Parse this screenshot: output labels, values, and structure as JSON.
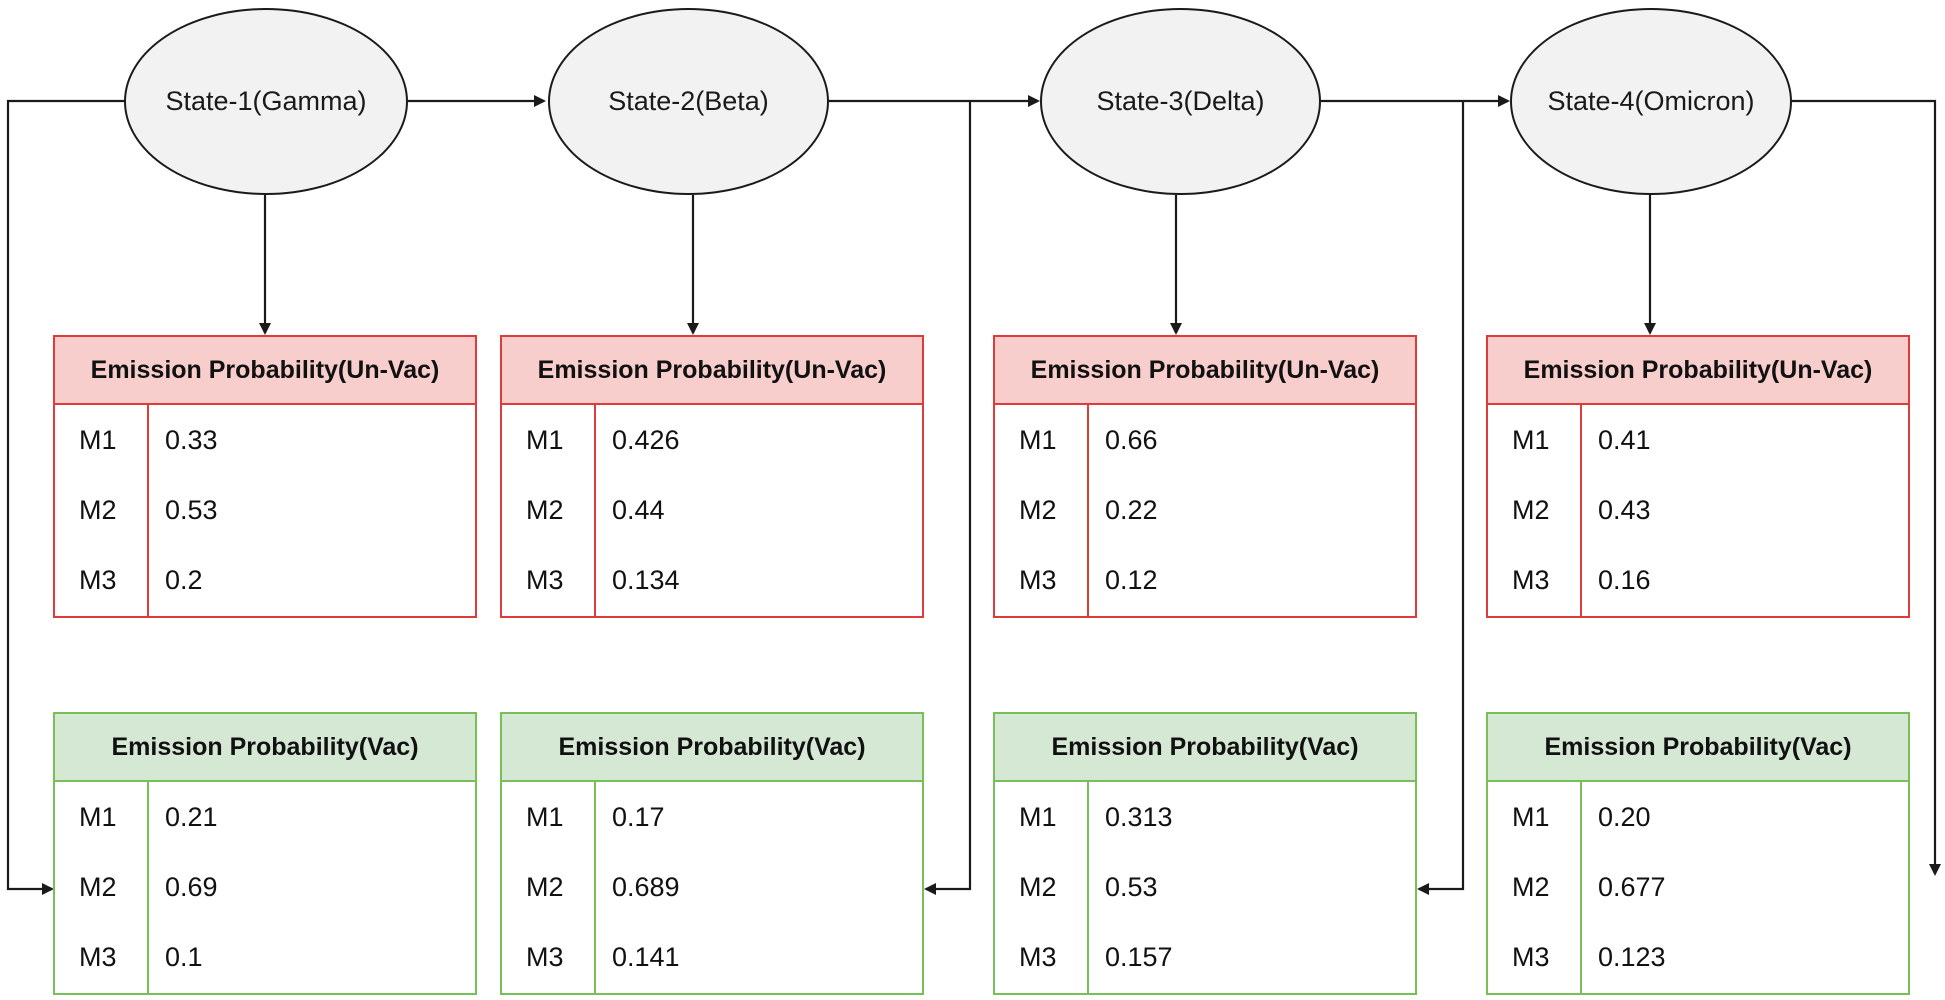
{
  "states": [
    {
      "label": "State-1(Gamma)",
      "unvac": {
        "title": "Emission Probability(Un-Vac)",
        "rows": [
          {
            "key": "M1",
            "value": "0.33"
          },
          {
            "key": "M2",
            "value": "0.53"
          },
          {
            "key": "M3",
            "value": "0.2"
          }
        ]
      },
      "vac": {
        "title": "Emission Probability(Vac)",
        "rows": [
          {
            "key": "M1",
            "value": "0.21"
          },
          {
            "key": "M2",
            "value": "0.69"
          },
          {
            "key": "M3",
            "value": "0.1"
          }
        ]
      }
    },
    {
      "label": "State-2(Beta)",
      "unvac": {
        "title": "Emission Probability(Un-Vac)",
        "rows": [
          {
            "key": "M1",
            "value": "0.426"
          },
          {
            "key": "M2",
            "value": "0.44"
          },
          {
            "key": "M3",
            "value": "0.134"
          }
        ]
      },
      "vac": {
        "title": "Emission Probability(Vac)",
        "rows": [
          {
            "key": "M1",
            "value": "0.17"
          },
          {
            "key": "M2",
            "value": "0.689"
          },
          {
            "key": "M3",
            "value": "0.141"
          }
        ]
      }
    },
    {
      "label": "State-3(Delta)",
      "unvac": {
        "title": "Emission Probability(Un-Vac)",
        "rows": [
          {
            "key": "M1",
            "value": "0.66"
          },
          {
            "key": "M2",
            "value": "0.22"
          },
          {
            "key": "M3",
            "value": "0.12"
          }
        ]
      },
      "vac": {
        "title": "Emission Probability(Vac)",
        "rows": [
          {
            "key": "M1",
            "value": "0.313"
          },
          {
            "key": "M2",
            "value": "0.53"
          },
          {
            "key": "M3",
            "value": "0.157"
          }
        ]
      }
    },
    {
      "label": "State-4(Omicron)",
      "unvac": {
        "title": "Emission Probability(Un-Vac)",
        "rows": [
          {
            "key": "M1",
            "value": "0.41"
          },
          {
            "key": "M2",
            "value": "0.43"
          },
          {
            "key": "M3",
            "value": "0.16"
          }
        ]
      },
      "vac": {
        "title": "Emission Probability(Vac)",
        "rows": [
          {
            "key": "M1",
            "value": "0.20"
          },
          {
            "key": "M2",
            "value": "0.677"
          },
          {
            "key": "M3",
            "value": "0.123"
          }
        ]
      }
    }
  ],
  "colors": {
    "unvac_border": "#e03b3b",
    "unvac_header": "#f8cecc",
    "vac_border": "#78bf5a",
    "vac_header": "#d5e8d4",
    "state_fill": "#f2f2f2",
    "line": "#1a1a1a"
  }
}
